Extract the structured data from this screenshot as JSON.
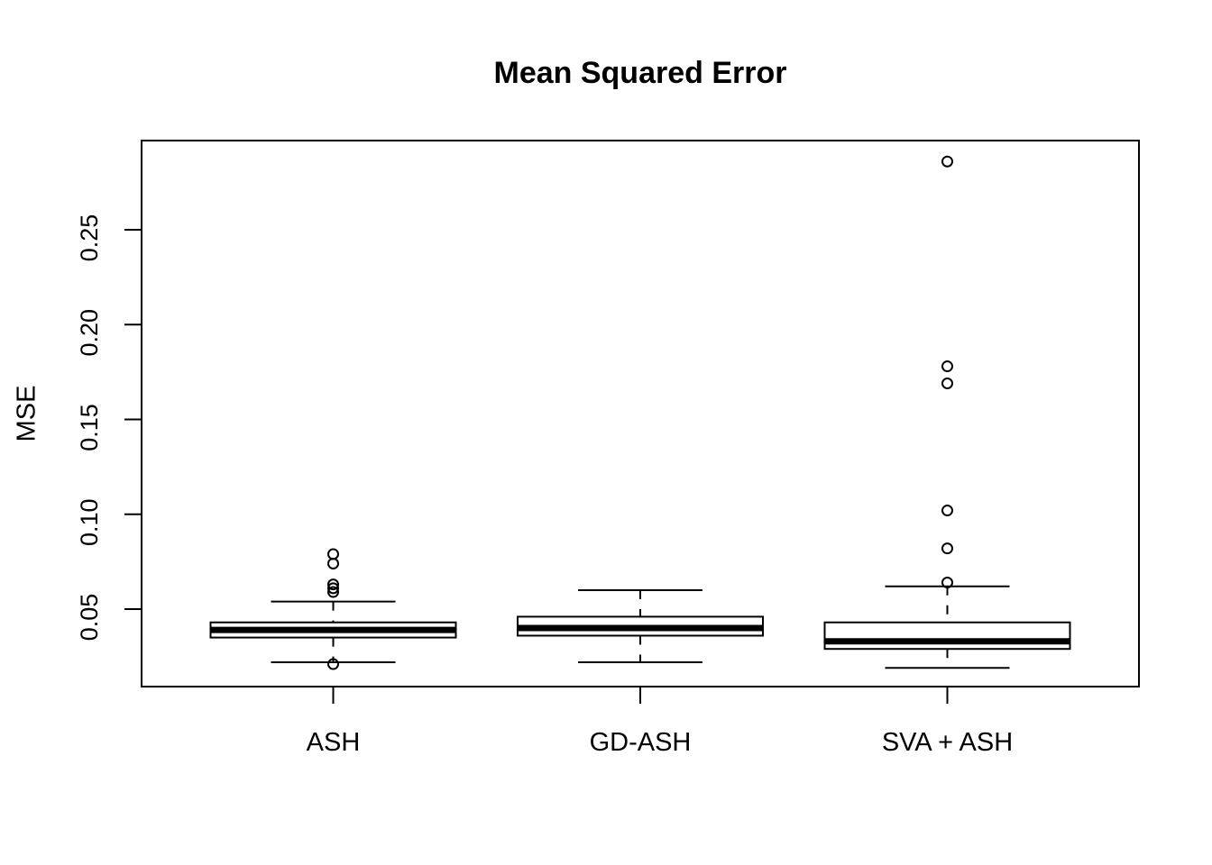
{
  "chart_data": {
    "type": "boxplot",
    "title": "Mean Squared Error",
    "ylabel": "MSE",
    "xlabel": "",
    "categories": [
      "ASH",
      "GD-ASH",
      "SVA + ASH"
    ],
    "y_ticks": [
      0.05,
      0.1,
      0.15,
      0.2,
      0.25
    ],
    "y_tick_labels": [
      "0.05",
      "0.10",
      "0.15",
      "0.20",
      "0.25"
    ],
    "ylim": [
      0.009,
      0.297
    ],
    "grid": "off",
    "legend": "none",
    "line_color": "#000000",
    "box_fill": "#ffffff",
    "series": [
      {
        "name": "ASH",
        "whisker_low": 0.022,
        "q1": 0.035,
        "median": 0.039,
        "q3": 0.043,
        "whisker_high": 0.054,
        "outliers": [
          0.021,
          0.059,
          0.061,
          0.063,
          0.074,
          0.079
        ]
      },
      {
        "name": "GD-ASH",
        "whisker_low": 0.022,
        "q1": 0.036,
        "median": 0.04,
        "q3": 0.046,
        "whisker_high": 0.06,
        "outliers": []
      },
      {
        "name": "SVA + ASH",
        "whisker_low": 0.019,
        "q1": 0.029,
        "median": 0.033,
        "q3": 0.043,
        "whisker_high": 0.062,
        "outliers": [
          0.064,
          0.082,
          0.102,
          0.169,
          0.178,
          0.286
        ]
      }
    ]
  }
}
